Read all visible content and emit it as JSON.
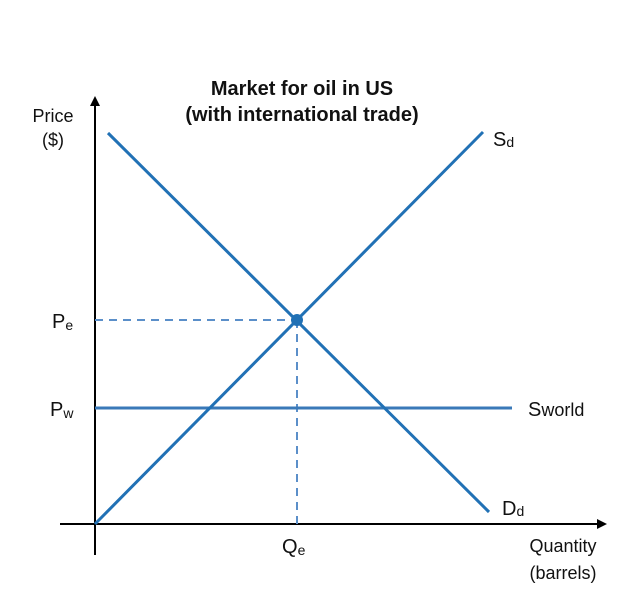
{
  "title_line1": "Market for oil in US",
  "title_line2": "(with international trade)",
  "y_axis_label": [
    "Price",
    "($)"
  ],
  "x_axis_label": [
    "Quantity",
    "(barrels)"
  ],
  "labels": {
    "pe_main": "P",
    "pe_sub": "e",
    "pw_main": "P",
    "pw_sub": "w",
    "qe_main": "Q",
    "qe_sub": "e",
    "sd_main": "S",
    "sd_sub": "d",
    "dd_main": "D",
    "dd_sub": "d",
    "sworld_main": "S",
    "sworld_sub": "world"
  },
  "colors": {
    "supply": "#2171b5",
    "demand": "#2171b5",
    "world": "#3a79b8",
    "guide": "#5b8fc9",
    "axis": "#000000"
  }
}
